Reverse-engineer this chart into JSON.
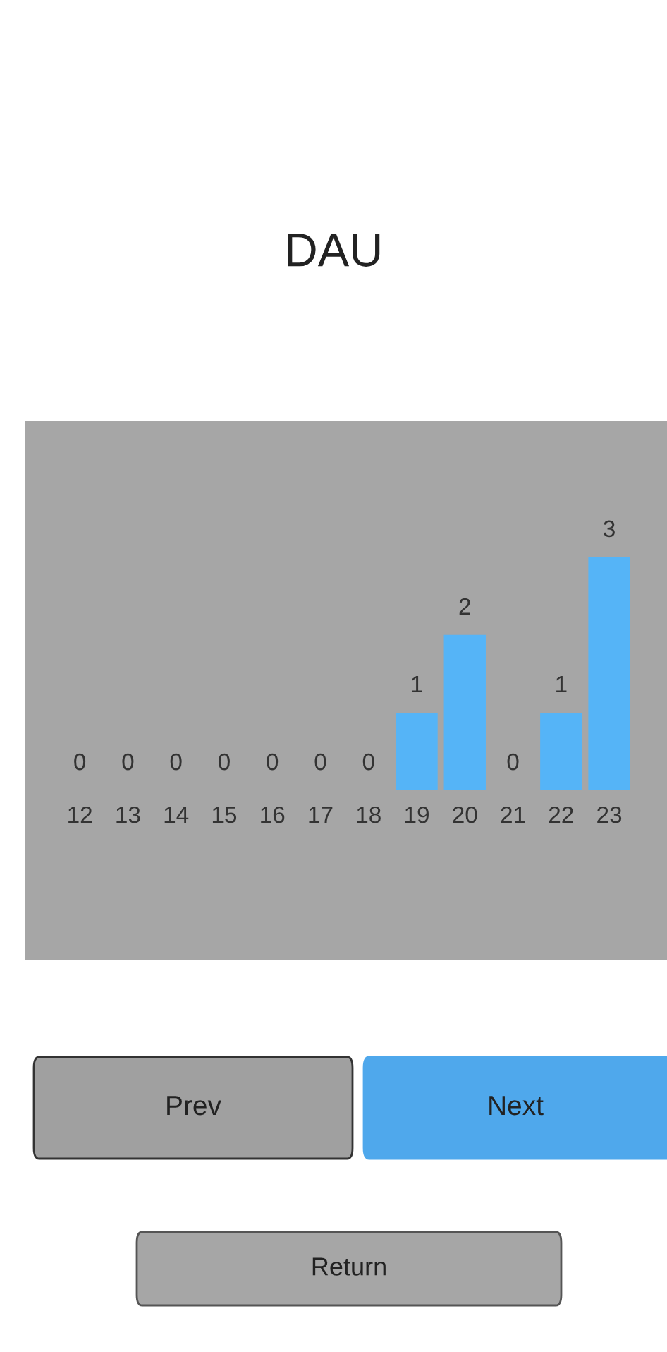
{
  "chart_data": {
    "type": "bar",
    "title": "DAU",
    "categories": [
      "12",
      "13",
      "14",
      "15",
      "16",
      "17",
      "18",
      "19",
      "20",
      "21",
      "22",
      "23"
    ],
    "values": [
      0,
      0,
      0,
      0,
      0,
      0,
      0,
      1,
      2,
      0,
      1,
      3
    ],
    "value_labels": [
      "0",
      "0",
      "0",
      "0",
      "0",
      "0",
      "0",
      "1",
      "2",
      "0",
      "1",
      "3"
    ],
    "color": "#55b4f7",
    "annotations": [
      "Prev",
      "Next",
      "Return"
    ]
  }
}
